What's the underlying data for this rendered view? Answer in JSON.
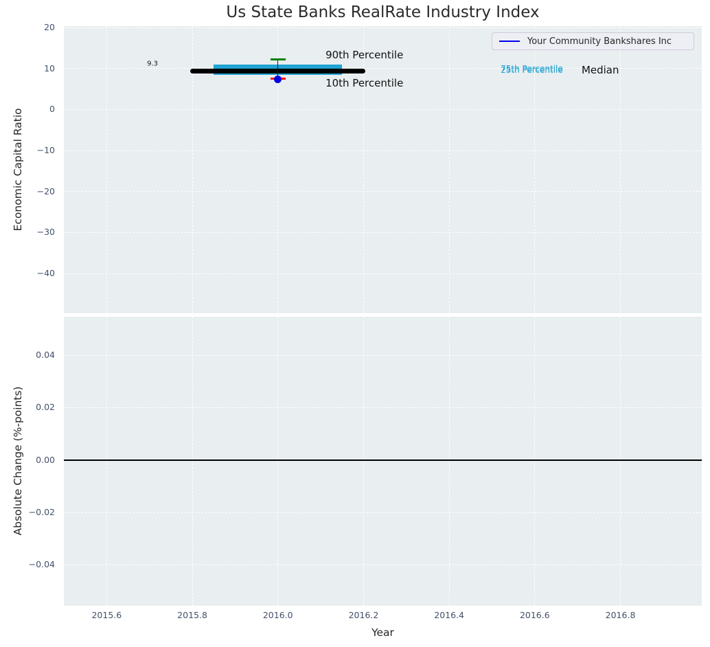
{
  "figure": {
    "title": "Us State Banks RealRate Industry Index",
    "background": "#ffffff",
    "axes_background": "#e9eef0",
    "grid_color": "#ffffff",
    "tick_label_color": "#43506a",
    "text_color": "#262626"
  },
  "chart_data": [
    {
      "type": "box-timeline",
      "title": "Us State Banks RealRate Industry Index",
      "ylabel": "Economic Capital Ratio",
      "xlim": [
        2015.5,
        2016.99
      ],
      "ylim": [
        -49.7,
        20.35
      ],
      "yticks": [
        {
          "v": 20,
          "label": "20"
        },
        {
          "v": 10,
          "label": "10"
        },
        {
          "v": 0,
          "label": "0"
        },
        {
          "v": -10,
          "label": "−10"
        },
        {
          "v": -20,
          "label": "−20"
        },
        {
          "v": -30,
          "label": "−30"
        },
        {
          "v": -40,
          "label": "−40"
        }
      ],
      "grid": true,
      "legend": {
        "label": "Your Community Bankshares Inc",
        "line_color": "#0000ee",
        "position": "upper right"
      },
      "marks": {
        "median": {
          "name": "Median",
          "value": 9.3,
          "x_start": 2015.8,
          "x_end": 2016.2,
          "color": "#000000",
          "lw": 7
        },
        "iqr": {
          "name": "25th-75th Percentile band",
          "p25": 9.6,
          "p75": 9.95,
          "x_start": 2015.85,
          "x_end": 2016.15,
          "color": "#20a3d2",
          "lw": 13
        },
        "stem": {
          "x": 2016.0,
          "from": 12.3,
          "to": 7.4,
          "color": "#1a1a1a"
        },
        "p90": {
          "name": "90th Percentile",
          "value": 12.3,
          "x": 2016.0,
          "halfwidth": 0.018,
          "color": "#008000"
        },
        "p10": {
          "name": "10th Percentile",
          "value": 7.5,
          "x": 2016.0,
          "halfwidth": 0.018,
          "color": "#ff0000"
        },
        "company": {
          "name": "Your Community Bankshares Inc",
          "value": 7.4,
          "x": 2016.0,
          "color": "#0000e0",
          "diameter": 11
        }
      },
      "annotations": [
        {
          "text": "9.3",
          "x": 2015.707,
          "y": 11.1,
          "size": 10,
          "color": "#1a1a1a"
        },
        {
          "text": "90th Percentile",
          "x": 2016.202,
          "y": 13.3,
          "size": 15,
          "color": "#111111"
        },
        {
          "text": "10th Percentile",
          "x": 2016.202,
          "y": 6.5,
          "size": 15,
          "color": "#111111"
        },
        {
          "text": "75th Percentile",
          "x": 2016.593,
          "y": 9.95,
          "size": 12,
          "color": "#20a3d2"
        },
        {
          "text": "25th Percentile",
          "x": 2016.593,
          "y": 9.6,
          "size": 12,
          "color": "#20a3d2"
        },
        {
          "text": "Median",
          "x": 2016.753,
          "y": 9.7,
          "size": 15,
          "color": "#111111"
        }
      ]
    },
    {
      "type": "line",
      "ylabel": "Absolute Change (%-points)",
      "xlabel": "Year",
      "xlim": [
        2015.5,
        2016.99
      ],
      "ylim": [
        -0.0556,
        0.0547
      ],
      "yticks": [
        {
          "v": 0.04,
          "label": "0.04"
        },
        {
          "v": 0.02,
          "label": "0.02"
        },
        {
          "v": 0.0,
          "label": "0.00"
        },
        {
          "v": -0.02,
          "label": "−0.02"
        },
        {
          "v": -0.04,
          "label": "−0.04"
        }
      ],
      "xticks": [
        {
          "v": 2015.6,
          "label": "2015.6"
        },
        {
          "v": 2015.8,
          "label": "2015.8"
        },
        {
          "v": 2016.0,
          "label": "2016.0"
        },
        {
          "v": 2016.2,
          "label": "2016.2"
        },
        {
          "v": 2016.4,
          "label": "2016.4"
        },
        {
          "v": 2016.6,
          "label": "2016.6"
        },
        {
          "v": 2016.8,
          "label": "2016.8"
        }
      ],
      "grid": true,
      "zero_line": {
        "value": 0.0,
        "color": "#000000",
        "lw": 1.5
      },
      "series": []
    }
  ]
}
